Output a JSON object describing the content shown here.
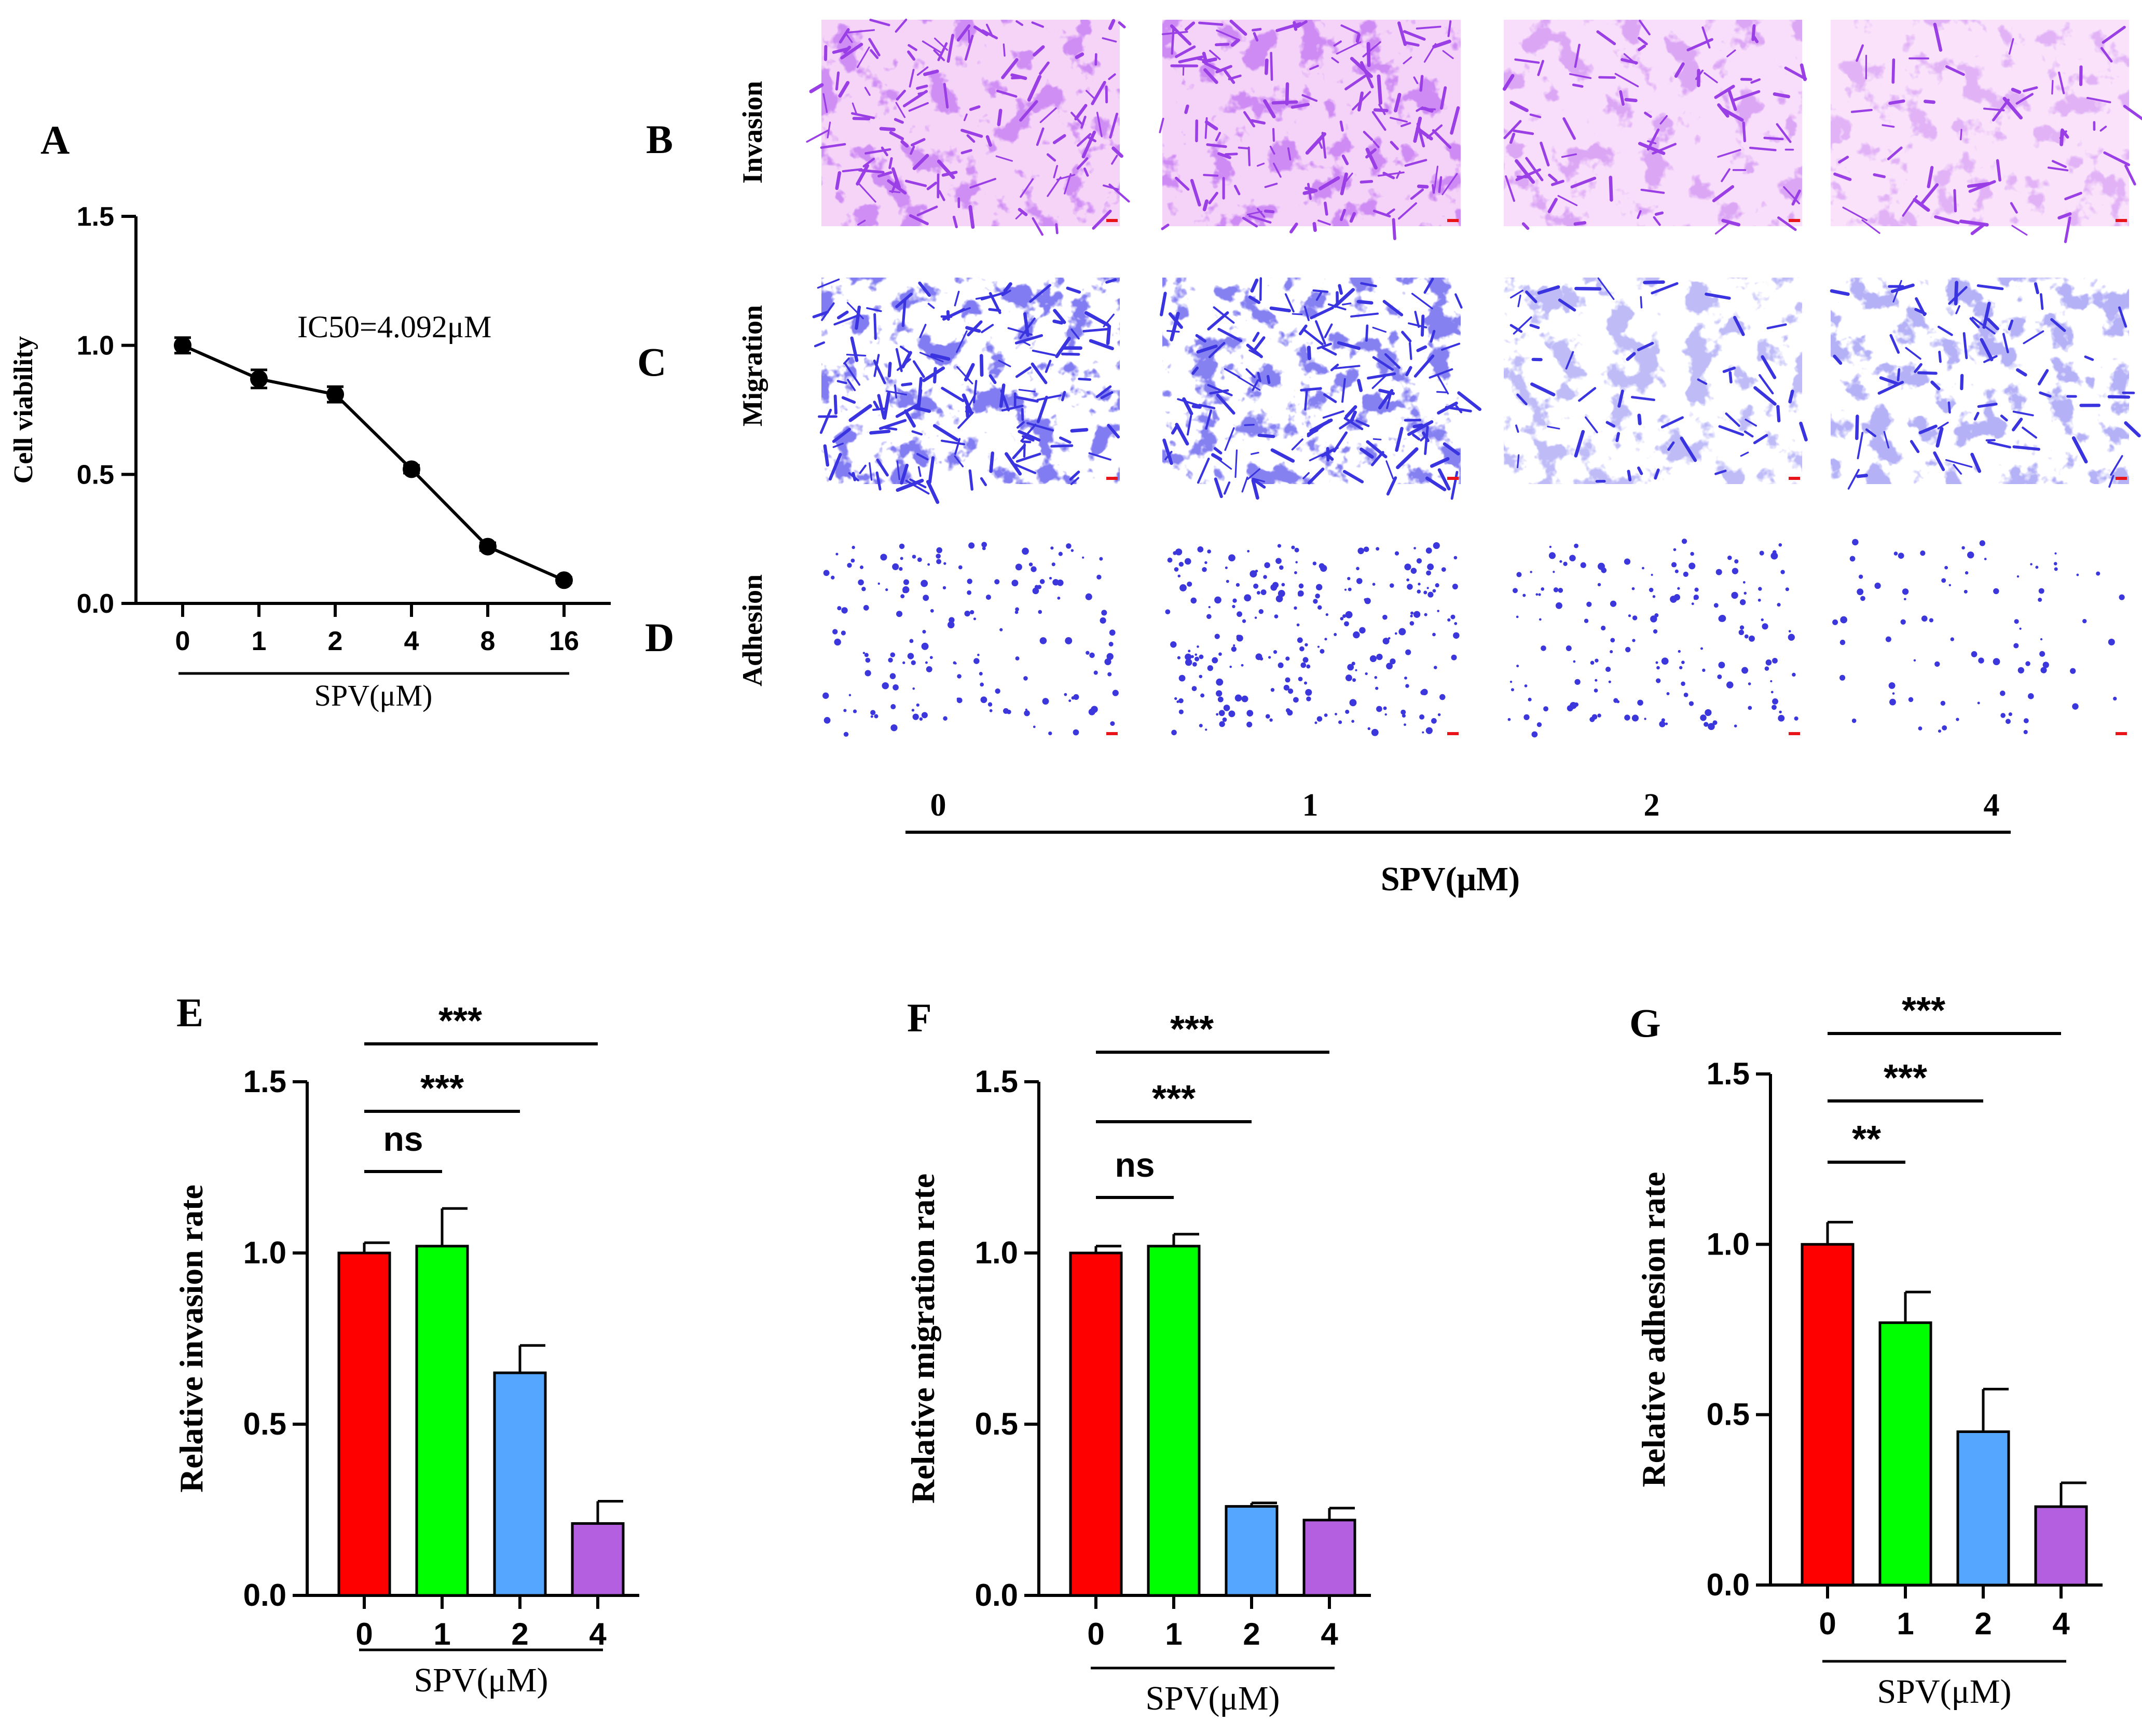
{
  "panel_letters": {
    "A": "A",
    "B": "B",
    "C": "C",
    "D": "D",
    "E": "E",
    "F": "F",
    "G": "G"
  },
  "colors": {
    "dose0": "#ff0000",
    "dose1": "#00ff00",
    "dose2": "#55a6ff",
    "dose4": "#b45ee0",
    "stain_invasion": "#9a3ee6",
    "stain_migration": "#3a33e0",
    "stain_adhesion": "#3c37dd",
    "invasion_background": "#f3c8f6",
    "scale_bar": "#e8141a",
    "axis": "#000000"
  },
  "chart_data": [
    {
      "panel": "A",
      "type": "line",
      "categories": [
        "0",
        "1",
        "2",
        "4",
        "8",
        "16"
      ],
      "values": [
        1.0,
        0.87,
        0.81,
        0.52,
        0.22,
        0.09
      ],
      "errors": [
        0.03,
        0.035,
        0.03,
        0.015,
        0.015,
        0.01
      ],
      "ylabel": "Cell viability",
      "xlabel": "SPV(μM)",
      "yticks": [
        "0.0",
        "0.5",
        "1.0",
        "1.5"
      ],
      "ylim": [
        0,
        1.5
      ],
      "annotation": "IC50=4.092μM"
    },
    {
      "panel": "E",
      "type": "bar",
      "categories": [
        "0",
        "1",
        "2",
        "4"
      ],
      "values": [
        1.0,
        1.02,
        0.65,
        0.21
      ],
      "errors": [
        0.03,
        0.11,
        0.08,
        0.065
      ],
      "ylabel": "Relative invasion rate",
      "xlabel": "SPV(μM)",
      "yticks": [
        "0.0",
        "0.5",
        "1.0",
        "1.5"
      ],
      "ylim": [
        0,
        1.5
      ],
      "significance": [
        {
          "from": "0",
          "to": "1",
          "label": "ns"
        },
        {
          "from": "0",
          "to": "2",
          "label": "***"
        },
        {
          "from": "0",
          "to": "4",
          "label": "***"
        }
      ]
    },
    {
      "panel": "F",
      "type": "bar",
      "categories": [
        "0",
        "1",
        "2",
        "4"
      ],
      "values": [
        1.0,
        1.02,
        0.26,
        0.22
      ],
      "errors": [
        0.02,
        0.035,
        0.01,
        0.035
      ],
      "ylabel": "Relative migration rate",
      "xlabel": "SPV(μM)",
      "yticks": [
        "0.0",
        "0.5",
        "1.0",
        "1.5"
      ],
      "ylim": [
        0,
        1.5
      ],
      "significance": [
        {
          "from": "0",
          "to": "1",
          "label": "ns"
        },
        {
          "from": "0",
          "to": "2",
          "label": "***"
        },
        {
          "from": "0",
          "to": "4",
          "label": "***"
        }
      ]
    },
    {
      "panel": "G",
      "type": "bar",
      "categories": [
        "0",
        "1",
        "2",
        "4"
      ],
      "values": [
        1.0,
        0.77,
        0.45,
        0.23
      ],
      "errors": [
        0.065,
        0.09,
        0.125,
        0.07
      ],
      "ylabel": "Relative adhesion rate",
      "xlabel": "SPV(μM)",
      "yticks": [
        "0.0",
        "0.5",
        "1.0",
        "1.5"
      ],
      "ylim": [
        0,
        1.5
      ],
      "significance": [
        {
          "from": "0",
          "to": "1",
          "label": "**"
        },
        {
          "from": "0",
          "to": "2",
          "label": "***"
        },
        {
          "from": "0",
          "to": "4",
          "label": "***"
        }
      ]
    }
  ],
  "micrographs": {
    "rows": [
      "Invasion",
      "Migration",
      "Adhesion"
    ],
    "doses": [
      "0",
      "1",
      "2",
      "4"
    ],
    "xlabel": "SPV(μM)",
    "stain_density": [
      [
        0.85,
        0.9,
        0.5,
        0.35
      ],
      [
        1.0,
        0.95,
        0.35,
        0.45
      ],
      [
        0.3,
        0.45,
        0.3,
        0.15
      ]
    ]
  }
}
